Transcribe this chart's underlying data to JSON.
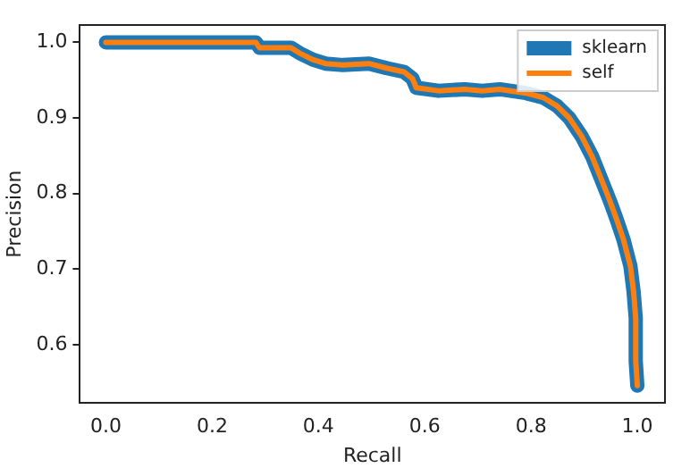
{
  "chart_data": {
    "type": "line",
    "xlabel": "Recall",
    "ylabel": "Precision",
    "x": [
      0,
      0.282,
      0.289,
      0.348,
      0.364,
      0.39,
      0.413,
      0.446,
      0.495,
      0.528,
      0.561,
      0.577,
      0.584,
      0.626,
      0.675,
      0.708,
      0.741,
      0.79,
      0.823,
      0.849,
      0.872,
      0.895,
      0.915,
      0.931,
      0.948,
      0.961,
      0.974,
      0.987,
      0.993,
      0.997,
      0.997,
      1.0
    ],
    "series": [
      {
        "name": "sklearn",
        "color": "#1f77b4",
        "values": [
          1.0,
          1.0,
          0.993,
          0.993,
          0.986,
          0.977,
          0.972,
          0.97,
          0.972,
          0.966,
          0.961,
          0.952,
          0.94,
          0.936,
          0.938,
          0.936,
          0.938,
          0.933,
          0.927,
          0.916,
          0.9,
          0.876,
          0.849,
          0.821,
          0.791,
          0.766,
          0.739,
          0.704,
          0.67,
          0.635,
          0.578,
          0.546
        ]
      },
      {
        "name": "self",
        "color": "#ff7f0e",
        "values": [
          1.0,
          1.0,
          0.993,
          0.993,
          0.986,
          0.977,
          0.972,
          0.97,
          0.972,
          0.966,
          0.961,
          0.952,
          0.94,
          0.936,
          0.938,
          0.936,
          0.938,
          0.933,
          0.927,
          0.916,
          0.9,
          0.876,
          0.849,
          0.821,
          0.791,
          0.766,
          0.739,
          0.704,
          0.67,
          0.635,
          0.578,
          0.546
        ]
      }
    ],
    "xlim": [
      -0.049,
      1.052
    ],
    "xticks": [
      {
        "value": 0,
        "label": "0.0"
      },
      0.2,
      0.4,
      0.6,
      0.8,
      {
        "value": 1,
        "label": "1.0"
      }
    ],
    "ylim": [
      0.523,
      1.023
    ],
    "yticks": [
      0.6,
      0.7,
      0.8,
      0.9,
      {
        "value": 1,
        "label": "1.0"
      }
    ],
    "legend": "top right",
    "grid": false,
    "marker": "none",
    "line_style": "solid"
  }
}
